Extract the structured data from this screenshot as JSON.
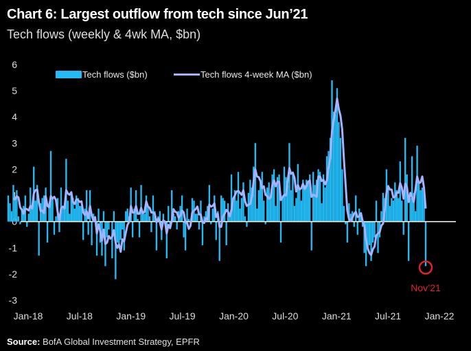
{
  "header": {
    "title": "Chart 6: Largest outflow from tech since Jun’21",
    "subtitle": "Tech flows (weekly & 4wk MA, $bn)"
  },
  "footer": {
    "source_label": "Source:",
    "source_text": " BofA Global Investment Strategy, EPFR"
  },
  "colors": {
    "background": "#000000",
    "bars": "#22bbf5",
    "ma_line": "#a3b3ff",
    "zero_line": "#ffffff",
    "annotation": "#e0222a"
  },
  "chart_data": {
    "type": "bar",
    "title": "Chart 6: Largest outflow from tech since Jun’21",
    "subtitle": "Tech flows (weekly & 4wk MA, $bn)",
    "xlabel": "",
    "ylabel": "",
    "ylim": [
      -3,
      6
    ],
    "yticks": [
      "6",
      "5",
      "4",
      "3",
      "2",
      "1",
      "0",
      "-1",
      "-2",
      "-3"
    ],
    "xticks": [
      "Jan-18",
      "Jul-18",
      "Jan-19",
      "Jul-19",
      "Jan-20",
      "Jul-20",
      "Jan-21",
      "Jul-21",
      "Jan-22"
    ],
    "x_start": "Nov-17",
    "x_end": "Nov-21",
    "frequency": "weekly",
    "grid": false,
    "legend_position": "top-left",
    "annotation": {
      "label": "Nov’21",
      "note": "circled latest weekly outflow",
      "value": -1.7
    },
    "series": [
      {
        "name": "Tech flows ($bn)",
        "kind": "bar",
        "values": [
          1.0,
          0.7,
          0.4,
          1.4,
          0.9,
          1.2,
          0.2,
          -0.1,
          0.5,
          0.6,
          1.0,
          -0.2,
          0.3,
          1.3,
          0.6,
          2.1,
          0.8,
          1.4,
          -1.3,
          0.7,
          0.9,
          1.0,
          1.3,
          -0.8,
          0.7,
          2.7,
          0.9,
          -0.5,
          0.2,
          0.9,
          -0.4,
          1.3,
          0.5,
          0.6,
          2.4,
          0.8,
          0.3,
          1.0,
          0.9,
          0.5,
          1.0,
          0.9,
          0.6,
          0.6,
          -0.7,
          0.5,
          1.2,
          -0.5,
          1.2,
          -0.9,
          0.3,
          0.1,
          -1.3,
          0.5,
          -0.8,
          -1.3,
          0.4,
          -1.7,
          -0.6,
          -0.3,
          0.0,
          -1.4,
          0.4,
          -2.2,
          -0.8,
          -0.9,
          -0.7,
          -0.3,
          -1.1,
          0.4,
          0.5,
          0.2,
          1.3,
          -0.6,
          0.5,
          1.2,
          0.1,
          -0.6,
          1.4,
          0.4,
          0.3,
          1.0,
          0.6,
          0.2,
          -0.4,
          1.0,
          0.4,
          -1.1,
          0.2,
          0.4,
          -0.7,
          0.3,
          0.0,
          -1.4,
          0.6,
          -0.2,
          1.2,
          0.3,
          0.2,
          -0.3,
          0.4,
          0.6,
          1.0,
          -0.6,
          -1.1,
          0.5,
          0.1,
          -0.1,
          0.9,
          0.8,
          0.3,
          0.3,
          -0.3,
          0.8,
          -0.9,
          0.2,
          0.4,
          0.6,
          1.4,
          -0.1,
          0.5,
          1.0,
          -0.7,
          0.4,
          -1.5,
          1.0,
          0.9,
          0.8,
          -0.9,
          0.7,
          0.2,
          1.8,
          0.8,
          1.2,
          0.8,
          1.9,
          0.5,
          0.9,
          1.5,
          0.2,
          -0.2,
          1.1,
          1.6,
          1.3,
          2.1,
          3.0,
          0.5,
          1.2,
          1.5,
          1.9,
          0.8,
          -0.1,
          1.3,
          1.5,
          1.0,
          1.8,
          2.0,
          0.6,
          1.7,
          1.8,
          -0.8,
          1.0,
          2.1,
          1.7,
          1.4,
          3.0,
          1.2,
          1.9,
          0.6,
          0.9,
          2.2,
          1.2,
          0.8,
          1.6,
          1.4,
          1.6,
          1.5,
          1.8,
          -1.1,
          1.9,
          1.4,
          1.6,
          2.0,
          1.9,
          0.7,
          1.8,
          1.3,
          2.5,
          2.7,
          3.2,
          5.4,
          4.2,
          4.1,
          5.1,
          3.8,
          3.2,
          2.0,
          0.6,
          -0.1,
          -0.8,
          0.7,
          0.3,
          0.4,
          -0.2,
          1.0,
          -0.5,
          0.5,
          0.3,
          -0.2,
          -1.2,
          -1.7,
          -1.0,
          -0.9,
          -1.5,
          -0.8,
          -0.6,
          0.8,
          -1.2,
          -0.6,
          0.4,
          1.1,
          0.9,
          2.0,
          1.4,
          0.6,
          0.9,
          0.8,
          1.5,
          1.2,
          0.9,
          2.3,
          0.8,
          -0.5,
          3.2,
          1.8,
          -1.5,
          0.9,
          2.5,
          1.1,
          0.4,
          2.9,
          1.5,
          1.2,
          1.3,
          1.2,
          -1.7
        ]
      },
      {
        "name": "Tech flows 4-week MA ($bn)",
        "kind": "line",
        "values": null
      }
    ]
  }
}
